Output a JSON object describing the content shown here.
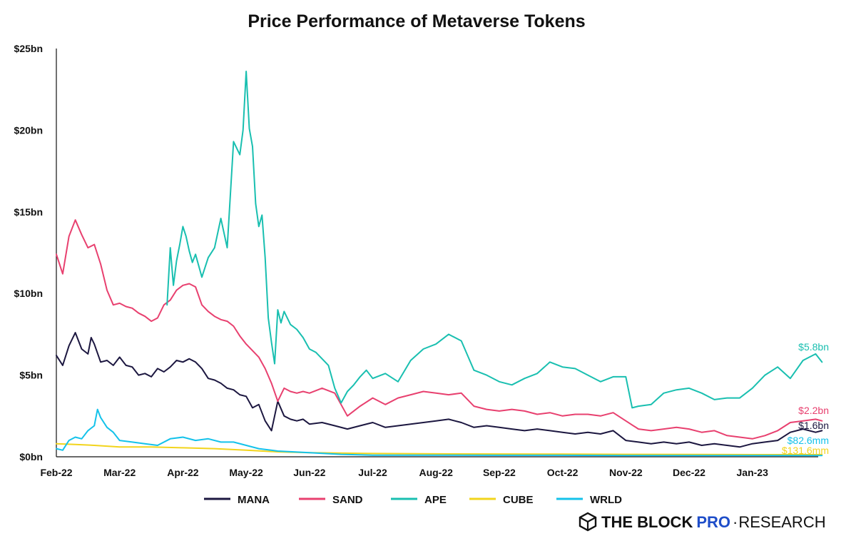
{
  "chart_data": {
    "type": "line",
    "title": "Price Performance of Metaverse Tokens",
    "xlabel": "",
    "ylabel": "",
    "ylim": [
      0,
      25
    ],
    "y_ticks": [
      0,
      5,
      10,
      15,
      20,
      25
    ],
    "y_tick_labels": [
      "$0bn",
      "$5bn",
      "$10bn",
      "$15bn",
      "$20bn",
      "$25bn"
    ],
    "x_range": [
      0,
      12.25
    ],
    "x_ticks": [
      0,
      1,
      2,
      3,
      4,
      5,
      6,
      7,
      8,
      9,
      10,
      11
    ],
    "x_tick_labels": [
      "Feb-22",
      "Mar-22",
      "Apr-22",
      "May-22",
      "Jun-22",
      "Jul-22",
      "Aug-22",
      "Sep-22",
      "Oct-22",
      "Nov-22",
      "Dec-22",
      "Jan-23"
    ],
    "grid": false,
    "legend_position": "bottom",
    "series": [
      {
        "name": "MANA",
        "color": "#1c1740",
        "x": [
          0,
          0.1,
          0.2,
          0.3,
          0.4,
          0.5,
          0.55,
          0.6,
          0.7,
          0.8,
          0.9,
          1.0,
          1.1,
          1.2,
          1.3,
          1.4,
          1.5,
          1.6,
          1.7,
          1.8,
          1.9,
          2.0,
          2.1,
          2.2,
          2.3,
          2.4,
          2.5,
          2.6,
          2.7,
          2.8,
          2.9,
          3.0,
          3.1,
          3.2,
          3.3,
          3.4,
          3.5,
          3.6,
          3.7,
          3.8,
          3.9,
          4.0,
          4.2,
          4.4,
          4.6,
          4.8,
          5.0,
          5.2,
          5.4,
          5.6,
          5.8,
          6.0,
          6.2,
          6.4,
          6.6,
          6.8,
          7.0,
          7.2,
          7.4,
          7.6,
          7.8,
          8.0,
          8.2,
          8.4,
          8.6,
          8.8,
          9.0,
          9.2,
          9.4,
          9.6,
          9.8,
          10.0,
          10.2,
          10.4,
          10.6,
          10.8,
          11.0,
          11.2,
          11.4,
          11.6,
          11.8,
          12.0,
          12.1
        ],
        "values": [
          6.2,
          5.6,
          6.8,
          7.6,
          6.6,
          6.3,
          7.3,
          6.9,
          5.8,
          5.9,
          5.6,
          6.1,
          5.6,
          5.5,
          5.0,
          5.1,
          4.9,
          5.4,
          5.2,
          5.5,
          5.9,
          5.8,
          6.0,
          5.8,
          5.4,
          4.8,
          4.7,
          4.5,
          4.2,
          4.1,
          3.8,
          3.7,
          3.0,
          3.2,
          2.2,
          1.6,
          3.4,
          2.5,
          2.3,
          2.2,
          2.3,
          2.0,
          2.1,
          1.9,
          1.7,
          1.9,
          2.1,
          1.8,
          1.9,
          2.0,
          2.1,
          2.2,
          2.3,
          2.1,
          1.8,
          1.9,
          1.8,
          1.7,
          1.6,
          1.7,
          1.6,
          1.5,
          1.4,
          1.5,
          1.4,
          1.6,
          1.0,
          0.9,
          0.8,
          0.9,
          0.8,
          0.9,
          0.7,
          0.8,
          0.7,
          0.6,
          0.8,
          0.9,
          1.0,
          1.5,
          1.7,
          1.5,
          1.6
        ],
        "end_label": "$1.6bn"
      },
      {
        "name": "SAND",
        "color": "#e8406f",
        "x": [
          0,
          0.1,
          0.2,
          0.3,
          0.4,
          0.5,
          0.6,
          0.7,
          0.8,
          0.9,
          1.0,
          1.1,
          1.2,
          1.3,
          1.4,
          1.5,
          1.6,
          1.7,
          1.8,
          1.9,
          2.0,
          2.1,
          2.2,
          2.3,
          2.4,
          2.5,
          2.6,
          2.7,
          2.8,
          2.9,
          3.0,
          3.1,
          3.2,
          3.3,
          3.4,
          3.5,
          3.6,
          3.7,
          3.8,
          3.9,
          4.0,
          4.2,
          4.4,
          4.6,
          4.8,
          5.0,
          5.2,
          5.4,
          5.6,
          5.8,
          6.0,
          6.2,
          6.4,
          6.6,
          6.8,
          7.0,
          7.2,
          7.4,
          7.6,
          7.8,
          8.0,
          8.2,
          8.4,
          8.6,
          8.8,
          9.0,
          9.2,
          9.4,
          9.6,
          9.8,
          10.0,
          10.2,
          10.4,
          10.6,
          10.8,
          11.0,
          11.2,
          11.4,
          11.6,
          11.8,
          12.0,
          12.1
        ],
        "values": [
          12.4,
          11.2,
          13.5,
          14.5,
          13.6,
          12.8,
          13.0,
          11.8,
          10.2,
          9.3,
          9.4,
          9.2,
          9.1,
          8.8,
          8.6,
          8.3,
          8.5,
          9.3,
          9.6,
          10.2,
          10.5,
          10.6,
          10.4,
          9.3,
          8.9,
          8.6,
          8.4,
          8.3,
          8.0,
          7.4,
          6.9,
          6.5,
          6.1,
          5.4,
          4.5,
          3.4,
          4.2,
          4.0,
          3.9,
          4.0,
          3.9,
          4.2,
          3.9,
          2.5,
          3.1,
          3.6,
          3.2,
          3.6,
          3.8,
          4.0,
          3.9,
          3.8,
          3.9,
          3.1,
          2.9,
          2.8,
          2.9,
          2.8,
          2.6,
          2.7,
          2.5,
          2.6,
          2.6,
          2.5,
          2.7,
          2.2,
          1.7,
          1.6,
          1.7,
          1.8,
          1.7,
          1.5,
          1.6,
          1.3,
          1.2,
          1.1,
          1.3,
          1.6,
          2.1,
          2.2,
          2.3,
          2.2
        ],
        "end_label": "$2.2bn"
      },
      {
        "name": "APE",
        "color": "#19bfb0",
        "x": [
          1.75,
          1.8,
          1.85,
          1.9,
          1.95,
          2.0,
          2.05,
          2.1,
          2.15,
          2.2,
          2.3,
          2.4,
          2.5,
          2.6,
          2.7,
          2.8,
          2.9,
          2.95,
          3.0,
          3.05,
          3.1,
          3.15,
          3.2,
          3.25,
          3.3,
          3.35,
          3.4,
          3.45,
          3.5,
          3.55,
          3.6,
          3.7,
          3.8,
          3.9,
          4.0,
          4.1,
          4.2,
          4.3,
          4.4,
          4.5,
          4.6,
          4.7,
          4.8,
          4.9,
          5.0,
          5.2,
          5.4,
          5.6,
          5.8,
          6.0,
          6.2,
          6.4,
          6.6,
          6.8,
          7.0,
          7.2,
          7.4,
          7.6,
          7.8,
          8.0,
          8.2,
          8.4,
          8.6,
          8.8,
          9.0,
          9.1,
          9.2,
          9.4,
          9.6,
          9.8,
          10.0,
          10.2,
          10.4,
          10.6,
          10.8,
          11.0,
          11.2,
          11.4,
          11.6,
          11.8,
          12.0,
          12.1
        ],
        "values": [
          9.3,
          12.8,
          10.5,
          12.0,
          13.0,
          14.1,
          13.5,
          12.6,
          11.9,
          12.4,
          11.0,
          12.2,
          12.8,
          14.6,
          12.8,
          19.3,
          18.5,
          20.0,
          23.6,
          20.1,
          19.0,
          15.5,
          14.1,
          14.8,
          12.2,
          8.5,
          7.0,
          5.7,
          9.0,
          8.2,
          8.9,
          8.1,
          7.8,
          7.3,
          6.6,
          6.4,
          6.0,
          5.6,
          4.2,
          3.3,
          4.0,
          4.4,
          4.9,
          5.3,
          4.8,
          5.1,
          4.6,
          5.9,
          6.6,
          6.9,
          7.5,
          7.1,
          5.3,
          5.0,
          4.6,
          4.4,
          4.8,
          5.1,
          5.8,
          5.5,
          5.4,
          5.0,
          4.6,
          4.9,
          4.9,
          3.0,
          3.1,
          3.2,
          3.9,
          4.1,
          4.2,
          3.9,
          3.5,
          3.6,
          3.6,
          4.2,
          5.0,
          5.5,
          4.8,
          5.9,
          6.3,
          5.8
        ],
        "end_label": "$5.8bn"
      },
      {
        "name": "CUBE",
        "color": "#f2d41c",
        "x": [
          0,
          0.3,
          0.6,
          1.0,
          1.5,
          2.0,
          2.5,
          3.0,
          3.5,
          4.0,
          5.0,
          6.0,
          7.0,
          8.0,
          9.0,
          10.0,
          11.0,
          12.1
        ],
        "values": [
          0.8,
          0.75,
          0.7,
          0.6,
          0.6,
          0.55,
          0.5,
          0.4,
          0.3,
          0.25,
          0.2,
          0.18,
          0.17,
          0.16,
          0.15,
          0.14,
          0.13,
          0.13
        ],
        "end_label": "$131.6mm"
      },
      {
        "name": "WRLD",
        "color": "#14c2ea",
        "x": [
          0,
          0.1,
          0.2,
          0.3,
          0.4,
          0.5,
          0.6,
          0.65,
          0.7,
          0.8,
          0.9,
          1.0,
          1.2,
          1.4,
          1.6,
          1.8,
          2.0,
          2.2,
          2.4,
          2.6,
          2.8,
          3.0,
          3.2,
          3.5,
          4.0,
          4.5,
          5.0,
          6.0,
          7.0,
          8.0,
          9.0,
          10.0,
          11.0,
          12.1
        ],
        "values": [
          0.5,
          0.4,
          1.0,
          1.2,
          1.1,
          1.6,
          1.9,
          2.9,
          2.4,
          1.8,
          1.5,
          1.0,
          0.9,
          0.8,
          0.7,
          1.1,
          1.2,
          1.0,
          1.1,
          0.9,
          0.9,
          0.7,
          0.5,
          0.35,
          0.25,
          0.15,
          0.1,
          0.1,
          0.09,
          0.09,
          0.08,
          0.08,
          0.08,
          0.08
        ],
        "end_label": "$82.6mm"
      }
    ]
  },
  "branding": {
    "logo_icon": "cube-outline-icon",
    "part1": "THE BLOCK",
    "part2": "PRO",
    "separator": "·",
    "part3": "RESEARCH"
  }
}
